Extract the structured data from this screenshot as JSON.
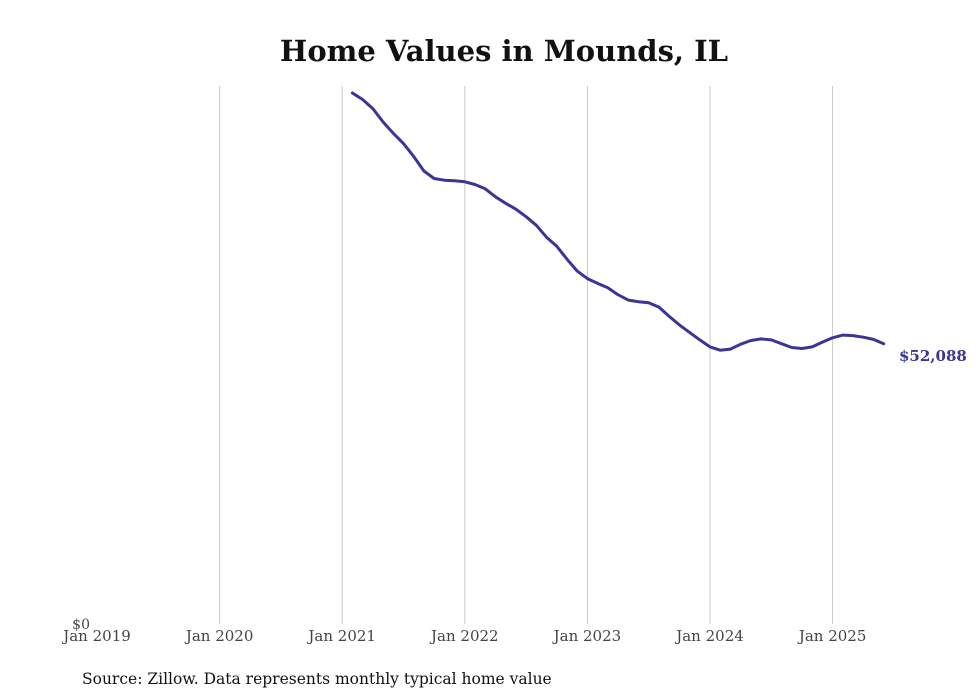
{
  "chart_data": {
    "type": "line",
    "title": "Home Values in Mounds, IL",
    "xlabel": "",
    "ylabel": "",
    "x_ticks": [
      "Jan 2019",
      "Jan 2020",
      "Jan 2021",
      "Jan 2022",
      "Jan 2023",
      "Jan 2024",
      "Jan 2025"
    ],
    "y_tick_label": "$0",
    "grid": "vertical",
    "color": "#3a3597",
    "end_label": "$52,088",
    "ylim": [
      0,
      100000
    ],
    "source": "Source: Zillow. Data represents monthly typical home value",
    "series": [
      {
        "x": [
          "2021-02",
          "2021-03",
          "2021-04",
          "2021-05",
          "2021-06",
          "2021-07",
          "2021-08",
          "2021-09",
          "2021-10",
          "2021-11",
          "2021-12",
          "2022-01",
          "2022-02",
          "2022-03",
          "2022-04",
          "2022-05",
          "2022-06",
          "2022-07",
          "2022-08",
          "2022-09",
          "2022-10",
          "2022-11",
          "2022-12",
          "2023-01",
          "2023-02",
          "2023-03",
          "2023-04",
          "2023-05",
          "2023-06",
          "2023-07",
          "2023-08",
          "2023-09",
          "2023-10",
          "2023-11",
          "2023-12",
          "2024-01",
          "2024-02",
          "2024-03",
          "2024-04",
          "2024-05",
          "2024-06",
          "2024-07",
          "2024-08",
          "2024-09",
          "2024-10",
          "2024-11",
          "2024-12",
          "2025-01",
          "2025-02",
          "2025-03",
          "2025-04",
          "2025-05",
          "2025-06"
        ],
        "values": [
          98700,
          97500,
          95800,
          93300,
          91200,
          89300,
          86900,
          84200,
          82800,
          82500,
          82400,
          82200,
          81700,
          80900,
          79400,
          78200,
          77100,
          75700,
          74100,
          71900,
          70200,
          67800,
          65600,
          64200,
          63300,
          62500,
          61200,
          60200,
          59900,
          59700,
          58900,
          57200,
          55600,
          54200,
          52800,
          51500,
          50900,
          51100,
          52000,
          52700,
          53000,
          52800,
          52100,
          51400,
          51200,
          51500,
          52400,
          53200,
          53700,
          53600,
          53300,
          52900,
          52088
        ]
      }
    ]
  }
}
